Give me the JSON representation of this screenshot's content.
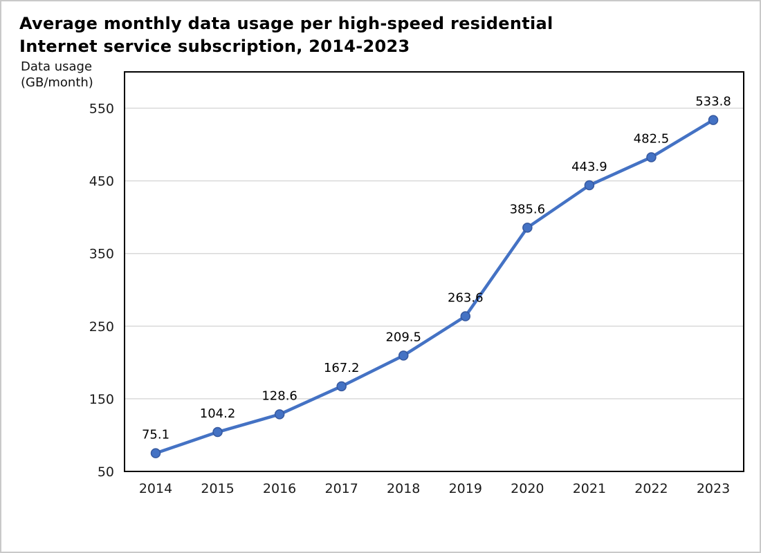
{
  "window": {
    "background": "#ffffff",
    "frame_border_color": "#c9c9c9"
  },
  "chart": {
    "title": "Average monthly data usage per high-speed residential\nInternet service subscription, 2014-2023",
    "y_axis_unit_label": "Data usage\n(GB/month)"
  },
  "chart_data": {
    "type": "line",
    "title": "Average monthly data usage per high-speed residential Internet service subscription, 2014-2023",
    "xlabel": "",
    "ylabel": "Data usage (GB/month)",
    "categories": [
      "2014",
      "2015",
      "2016",
      "2017",
      "2018",
      "2019",
      "2020",
      "2021",
      "2022",
      "2023"
    ],
    "values": [
      75.1,
      104.2,
      128.6,
      167.2,
      209.5,
      263.6,
      385.6,
      443.9,
      482.5,
      533.8
    ],
    "y_ticks": [
      50,
      150,
      250,
      350,
      450,
      550
    ],
    "ylim": [
      50,
      600
    ],
    "grid": "horizontal-only",
    "legend": "none",
    "data_labels": true,
    "line_color": "#4472C4",
    "marker_color": "#4472C4",
    "marker_edge_color": "#36589E",
    "gridline_color": "#D9D9D9",
    "axis_border_color": "#000000",
    "tick_label_color": "#1a1a1a",
    "data_label_color": "#000000"
  }
}
